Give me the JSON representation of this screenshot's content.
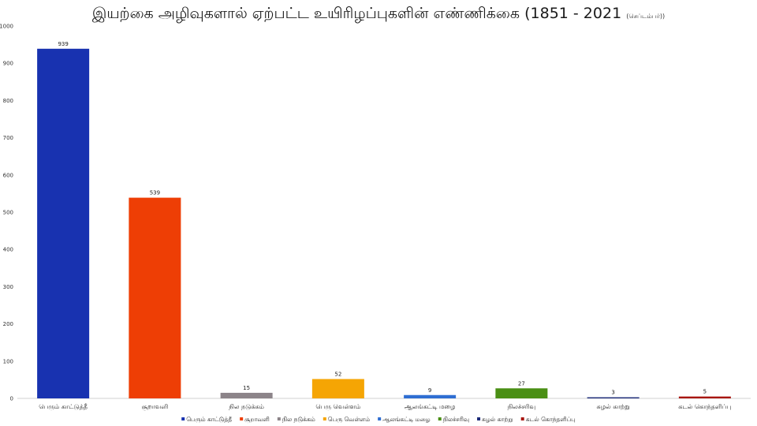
{
  "chart_data": {
    "type": "bar",
    "title": "இயற்கை அழிவுகளால் ஏற்பட்ட உயிரிழப்புகளின் எண்ணிக்கை (1851 - 2021",
    "subtitle": "(செப்டம்பர்))",
    "categories": [
      "பெரும் காட்டுத்தீ",
      "சூறாவளி",
      "நில நடுக்கம்",
      "பெரு வெள்ளம்",
      "ஆலங்கட்டி மழை",
      "நிலச்சரிவு",
      "சுழல் காற்று",
      "கடல் கொந்தளிப்பு"
    ],
    "values": [
      939,
      539,
      15,
      52,
      9,
      27,
      3,
      5
    ],
    "colors": [
      "#1832b0",
      "#ee3e05",
      "#8c8489",
      "#f5a504",
      "#2f6ed2",
      "#4a8f14",
      "#1b2a78",
      "#a8160f"
    ],
    "y_ticks": [
      0,
      100,
      200,
      300,
      400,
      500,
      600,
      700,
      800,
      900,
      1000
    ],
    "ylim": [
      0,
      1000
    ],
    "xlabel": "",
    "ylabel": "",
    "grid": false,
    "legend": "bottom",
    "data_labels": true
  }
}
